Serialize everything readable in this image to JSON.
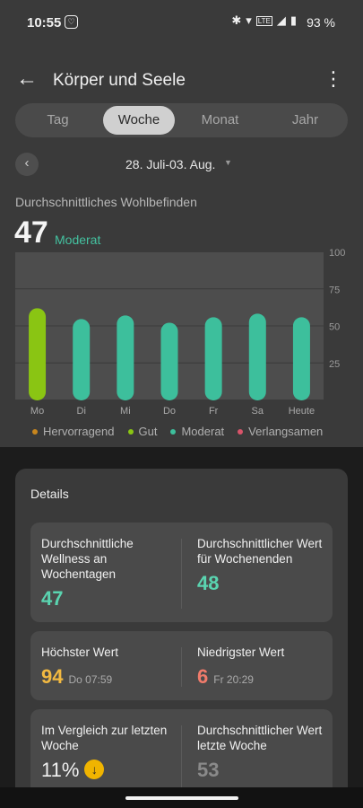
{
  "status": {
    "time": "10:55",
    "battery": "93 %"
  },
  "header": {
    "title": "Körper und Seele"
  },
  "tabs": [
    "Tag",
    "Woche",
    "Monat",
    "Jahr"
  ],
  "date_range": "28. Juli-03. Aug.",
  "summary": {
    "label": "Durchschnittliches Wohlbefinden",
    "value": "47",
    "status": "Moderat"
  },
  "colors": {
    "hervorragend": "#c8861e",
    "gut": "#8ac513",
    "moderat": "#3dbf9c",
    "verlangsamen": "#d9546a",
    "highest": "#f2b941",
    "lowest": "#f07b6b",
    "accent": "#5ad4b0"
  },
  "chart_data": {
    "type": "bar",
    "categories": [
      "Mo",
      "Di",
      "Mi",
      "Do",
      "Fr",
      "Sa",
      "Heute"
    ],
    "values": [
      51,
      45,
      47,
      43,
      46,
      48,
      46
    ],
    "levels": [
      "Gut",
      "Moderat",
      "Moderat",
      "Moderat",
      "Moderat",
      "Moderat",
      "Moderat"
    ],
    "yticks": [
      "100",
      "75",
      "50",
      "25"
    ],
    "ylim": [
      0,
      100
    ]
  },
  "legend": [
    "Hervorragend",
    "Gut",
    "Moderat",
    "Verlangsamen"
  ],
  "details": {
    "title": "Details",
    "weekday_label": "Durchschnittliche Wellness an Wochentagen",
    "weekday_value": "47",
    "weekend_label": "Durchschnittlicher Wert für Wochenenden",
    "weekend_value": "48",
    "high_label": "Höchster Wert",
    "high_value": "94",
    "high_time": "Do 07:59",
    "low_label": "Niedrigster Wert",
    "low_value": "6",
    "low_time": "Fr 20:29",
    "compare_label": "Im Vergleich zur letzten Woche",
    "compare_value": "11%",
    "lastweek_label": "Durchschnittlicher Wert letzte Woche",
    "lastweek_value": "53"
  }
}
